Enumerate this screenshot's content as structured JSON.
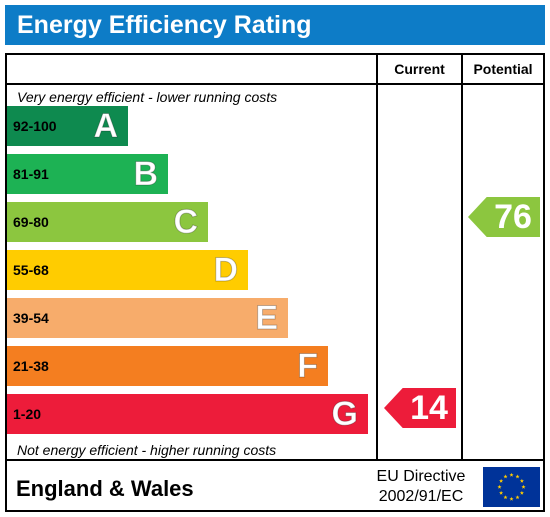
{
  "title": "Energy Efficiency Rating",
  "columns": {
    "current": "Current",
    "potential": "Potential"
  },
  "captions": {
    "top": "Very energy efficient - lower running costs",
    "bottom": "Not energy efficient - higher running costs"
  },
  "bands": [
    {
      "range": "92-100",
      "letter": "A",
      "color": "#0e8a4f",
      "range_color": "#000000"
    },
    {
      "range": "81-91",
      "letter": "B",
      "color": "#1db254",
      "range_color": "#000000"
    },
    {
      "range": "69-80",
      "letter": "C",
      "color": "#8cc63f",
      "range_color": "#000000"
    },
    {
      "range": "55-68",
      "letter": "D",
      "color": "#ffcc00",
      "range_color": "#000000"
    },
    {
      "range": "39-54",
      "letter": "E",
      "color": "#f7ac6b",
      "range_color": "#000000"
    },
    {
      "range": "21-38",
      "letter": "F",
      "color": "#f47e20",
      "range_color": "#000000"
    },
    {
      "range": "1-20",
      "letter": "G",
      "color": "#ed1c3a",
      "range_color": "#000000"
    }
  ],
  "current_rating": {
    "value": "14",
    "band": "G",
    "color": "#ed1c3a"
  },
  "potential_rating": {
    "value": "76",
    "band": "C",
    "color": "#8cc63f"
  },
  "footer": {
    "region": "England & Wales",
    "directive_line1": "EU Directive",
    "directive_line2": "2002/91/EC",
    "flag_icon": "eu-flag-icon"
  }
}
